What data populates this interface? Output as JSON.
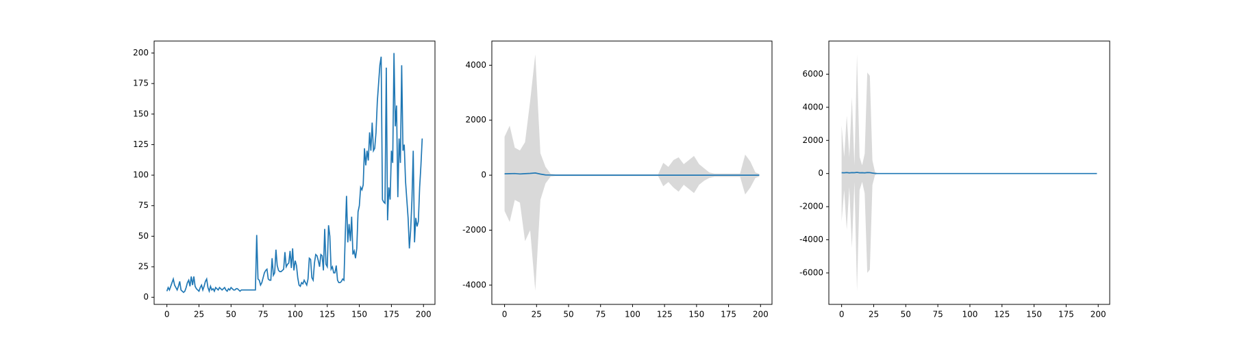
{
  "chart_data": [
    {
      "type": "line",
      "color": "#1f77b4",
      "x": [
        0,
        1,
        2,
        3,
        4,
        5,
        6,
        7,
        8,
        9,
        10,
        11,
        12,
        13,
        14,
        15,
        16,
        17,
        18,
        19,
        20,
        21,
        22,
        23,
        24,
        25,
        26,
        27,
        28,
        29,
        30,
        31,
        32,
        33,
        34,
        35,
        36,
        37,
        38,
        39,
        40,
        41,
        42,
        43,
        44,
        45,
        46,
        47,
        48,
        49,
        50,
        51,
        52,
        53,
        54,
        55,
        56,
        57,
        58,
        59,
        60,
        61,
        62,
        63,
        64,
        65,
        66,
        67,
        68,
        69,
        70,
        71,
        72,
        73,
        74,
        75,
        76,
        77,
        78,
        79,
        80,
        81,
        82,
        83,
        84,
        85,
        86,
        87,
        88,
        89,
        90,
        91,
        92,
        93,
        94,
        95,
        96,
        97,
        98,
        99,
        100,
        101,
        102,
        103,
        104,
        105,
        106,
        107,
        108,
        109,
        110,
        111,
        112,
        113,
        114,
        115,
        116,
        117,
        118,
        119,
        120,
        121,
        122,
        123,
        124,
        125,
        126,
        127,
        128,
        129,
        130,
        131,
        132,
        133,
        134,
        135,
        136,
        137,
        138,
        139,
        140,
        141,
        142,
        143,
        144,
        145,
        146,
        147,
        148,
        149,
        150,
        151,
        152,
        153,
        154,
        155,
        156,
        157,
        158,
        159,
        160,
        161,
        162,
        163,
        164,
        165,
        166,
        167,
        168,
        169,
        170,
        171,
        172,
        173,
        174,
        175,
        176,
        177,
        178,
        179,
        180,
        181,
        182,
        183,
        184,
        185,
        186,
        187,
        188,
        189,
        190,
        191,
        192,
        193,
        194,
        195,
        196,
        197,
        198,
        199
      ],
      "values": [
        5,
        8,
        6,
        9,
        12,
        15,
        10,
        8,
        6,
        9,
        13,
        6,
        5,
        4,
        5,
        8,
        12,
        14,
        9,
        17,
        10,
        17,
        9,
        7,
        6,
        5,
        8,
        10,
        6,
        9,
        13,
        15,
        8,
        5,
        9,
        6,
        7,
        5,
        8,
        7,
        6,
        8,
        7,
        6,
        7,
        8,
        6,
        5,
        7,
        6,
        8,
        7,
        6,
        6,
        7,
        7,
        6,
        5,
        6,
        6,
        6,
        6,
        6,
        6,
        6,
        6,
        6,
        6,
        6,
        6,
        51,
        15,
        14,
        10,
        12,
        16,
        20,
        22,
        23,
        15,
        14,
        14,
        32,
        18,
        20,
        39,
        26,
        22,
        21,
        21,
        22,
        23,
        37,
        25,
        27,
        28,
        38,
        24,
        40,
        22,
        30,
        26,
        16,
        10,
        9,
        12,
        11,
        14,
        12,
        10,
        15,
        32,
        31,
        16,
        14,
        28,
        35,
        34,
        30,
        25,
        35,
        34,
        22,
        56,
        27,
        25,
        59,
        50,
        23,
        25,
        20,
        20,
        26,
        14,
        12,
        12,
        13,
        15,
        14,
        50,
        83,
        45,
        60,
        46,
        66,
        35,
        38,
        32,
        40,
        70,
        75,
        90,
        88,
        92,
        122,
        108,
        120,
        112,
        135,
        120,
        143,
        120,
        122,
        135,
        160,
        175,
        190,
        197,
        80,
        78,
        77,
        188,
        63,
        90,
        80,
        120,
        110,
        200,
        140,
        157,
        82,
        130,
        110,
        190,
        120,
        125,
        95,
        80,
        65,
        40,
        55,
        80,
        120,
        45,
        65,
        58,
        62,
        90,
        108,
        130
      ],
      "xlim": [
        -9.95,
        208.95
      ],
      "xticks": [
        0,
        25,
        50,
        75,
        100,
        125,
        150,
        175,
        200
      ],
      "ylim": [
        -5.8,
        209.8
      ],
      "yticks": [
        0,
        25,
        50,
        75,
        100,
        125,
        150,
        175,
        200
      ]
    },
    {
      "type": "band-line",
      "color": "#1f77b4",
      "x": [
        0,
        4,
        8,
        12,
        16,
        20,
        24,
        28,
        32,
        36,
        40,
        44,
        48,
        52,
        56,
        60,
        64,
        68,
        72,
        76,
        80,
        84,
        88,
        92,
        96,
        100,
        104,
        108,
        112,
        116,
        120,
        124,
        128,
        132,
        136,
        140,
        144,
        148,
        152,
        156,
        160,
        164,
        168,
        172,
        176,
        180,
        184,
        188,
        192,
        196,
        199
      ],
      "values": [
        50,
        55,
        60,
        45,
        55,
        65,
        80,
        40,
        10,
        5,
        0,
        0,
        0,
        0,
        0,
        0,
        0,
        0,
        0,
        0,
        0,
        0,
        0,
        0,
        0,
        0,
        0,
        0,
        0,
        0,
        0,
        0,
        0,
        0,
        0,
        0,
        0,
        0,
        0,
        0,
        0,
        0,
        0,
        0,
        0,
        0,
        0,
        0,
        0,
        0,
        0
      ],
      "band": {
        "color": "#d9d9d9",
        "upper": [
          1400,
          1800,
          1000,
          900,
          1200,
          2700,
          4400,
          800,
          300,
          50,
          30,
          30,
          30,
          30,
          30,
          30,
          30,
          30,
          30,
          30,
          30,
          30,
          30,
          30,
          30,
          30,
          30,
          30,
          30,
          30,
          30,
          450,
          300,
          550,
          650,
          400,
          550,
          700,
          400,
          250,
          100,
          60,
          60,
          60,
          60,
          60,
          60,
          750,
          500,
          100,
          50
        ],
        "lower": [
          -1300,
          -1700,
          -900,
          -1000,
          -2400,
          -2000,
          -4200,
          -900,
          -300,
          -50,
          -30,
          -30,
          -30,
          -30,
          -30,
          -30,
          -30,
          -30,
          -30,
          -30,
          -30,
          -30,
          -30,
          -30,
          -30,
          -30,
          -30,
          -30,
          -30,
          -30,
          -30,
          -400,
          -250,
          -450,
          -600,
          -350,
          -500,
          -650,
          -350,
          -200,
          -100,
          -60,
          -60,
          -60,
          -60,
          -60,
          -60,
          -700,
          -450,
          -100,
          -50
        ]
      },
      "xlim": [
        -9.95,
        208.95
      ],
      "xticks": [
        0,
        25,
        50,
        75,
        100,
        125,
        150,
        175,
        200
      ],
      "ylim": [
        -4700,
        4880
      ],
      "yticks": [
        -4000,
        -2000,
        0,
        2000,
        4000
      ]
    },
    {
      "type": "band-line",
      "color": "#1f77b4",
      "x": [
        0,
        2,
        4,
        6,
        8,
        10,
        12,
        14,
        16,
        18,
        20,
        22,
        24,
        26,
        28,
        30,
        50,
        100,
        150,
        199
      ],
      "values": [
        50,
        45,
        60,
        40,
        55,
        50,
        70,
        45,
        50,
        40,
        60,
        55,
        30,
        10,
        0,
        0,
        0,
        0,
        0,
        0
      ],
      "band": {
        "color": "#d9d9d9",
        "upper": [
          2900,
          1000,
          3500,
          1000,
          4600,
          500,
          7200,
          1000,
          500,
          1200,
          6100,
          5900,
          800,
          100,
          0,
          0,
          0,
          0,
          0,
          0
        ],
        "lower": [
          -2900,
          -1000,
          -3400,
          -800,
          -4500,
          -500,
          -7100,
          -1000,
          -500,
          -1200,
          -6000,
          -5800,
          -700,
          -100,
          0,
          0,
          0,
          0,
          0,
          0
        ]
      },
      "xlim": [
        -9.95,
        208.95
      ],
      "xticks": [
        0,
        25,
        50,
        75,
        100,
        125,
        150,
        175,
        200
      ],
      "ylim": [
        -7900,
        8000
      ],
      "yticks": [
        -6000,
        -4000,
        -2000,
        0,
        2000,
        4000,
        6000
      ]
    }
  ]
}
